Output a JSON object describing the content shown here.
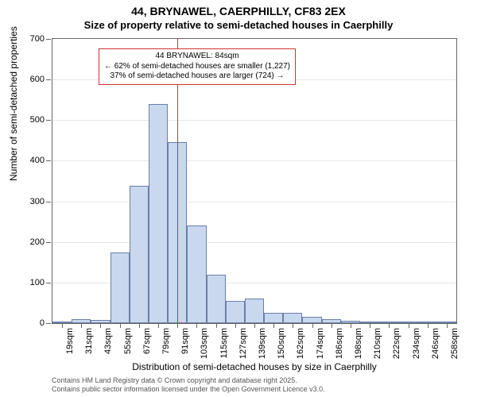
{
  "title_main": "44, BRYNAWEL, CAERPHILLY, CF83 2EX",
  "title_sub": "Size of property relative to semi-detached houses in Caerphilly",
  "y_axis": {
    "label": "Number of semi-detached properties",
    "min": 0,
    "max": 700,
    "tick_step": 100,
    "tick_label_fontsize": 11,
    "label_fontsize": 12
  },
  "x_axis": {
    "label": "Distribution of semi-detached houses by size in Caerphilly",
    "tick_labels": [
      "19sqm",
      "31sqm",
      "43sqm",
      "55sqm",
      "67sqm",
      "79sqm",
      "91sqm",
      "103sqm",
      "115sqm",
      "127sqm",
      "139sqm",
      "150sqm",
      "162sqm",
      "174sqm",
      "186sqm",
      "198sqm",
      "210sqm",
      "222sqm",
      "234sqm",
      "246sqm",
      "258sqm"
    ],
    "tick_label_fontsize": 11,
    "label_fontsize": 12
  },
  "histogram": {
    "type": "histogram",
    "bar_fill": "#c9d8ef",
    "bar_stroke": "#6a7fa6",
    "bar_stroke_width": 1,
    "values": [
      2,
      10,
      8,
      175,
      338,
      540,
      445,
      240,
      120,
      55,
      60,
      25,
      25,
      15,
      10,
      5,
      3,
      2,
      2,
      2,
      2
    ]
  },
  "reference_line": {
    "color": "#cc3333",
    "width": 1,
    "bin_position": 6.5
  },
  "annotation": {
    "border_color": "#cc3333",
    "line1": "44 BRYNAWEL: 84sqm",
    "line2": "← 62% of semi-detached houses are smaller (1,227)",
    "line3": "37% of semi-detached houses are larger (724) →",
    "fontsize": 10
  },
  "footer": {
    "line1": "Contains HM Land Registry data © Crown copyright and database right 2025.",
    "line2": "Contains public sector information licensed under the Open Government Licence v3.0.",
    "fontsize": 9,
    "color": "#555555"
  },
  "plot": {
    "background_color": "#ffffff",
    "border_color": "#666666"
  }
}
